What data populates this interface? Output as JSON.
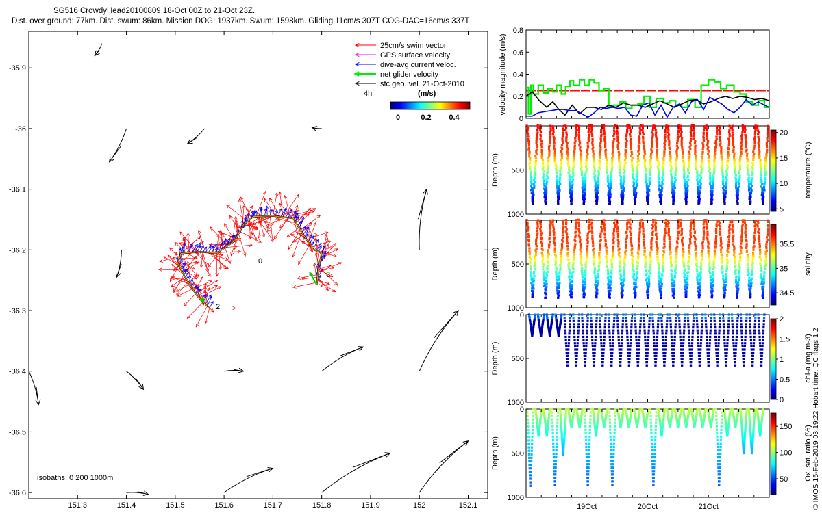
{
  "header": {
    "line1": "SG516 CrowdyHead20100809 18-Oct 00Z to 21-Oct 23Z.",
    "line2": "Dist. over ground: 77km. Dist. swum: 86km. Mission DOG: 1937km. Swum: 1598km. Gliding 11cm/s 307T COG-DAC=16cm/s 337T"
  },
  "side_label": "© IMOS 15-Feb-2019 03:19:22 Hobart time. QC flags 1  2",
  "map": {
    "x_ticks": [
      "151.3",
      "151.4",
      "151.5",
      "151.6",
      "151.7",
      "151.8",
      "151.9",
      "152",
      "152.1"
    ],
    "y_ticks": [
      "-35.9",
      "-36",
      "-36.1",
      "-36.2",
      "-36.3",
      "-36.4",
      "-36.5",
      "-36.6"
    ],
    "xlim": [
      151.2,
      152.14
    ],
    "ylim": [
      -36.61,
      -35.84
    ],
    "legend": [
      {
        "label": "25cm/s swim vector",
        "color": "#ff0000"
      },
      {
        "label": "GPS surface velocity",
        "color": "#ff00ff"
      },
      {
        "label": "dive-avg current veloc.",
        "color": "#0000ff"
      },
      {
        "label": "net glider velocity",
        "color": "#00ee00"
      },
      {
        "label": "sfc geo. vel. 21-Oct-2010",
        "color": "#000000"
      }
    ],
    "colorbar": {
      "title": "(m/s)",
      "ticks": [
        "0",
        "0.2",
        "0.4"
      ],
      "extra_label": "4h"
    },
    "isobaths_text": "isobaths: 0   200  1000m",
    "day_labels": [
      "0",
      "8",
      "2"
    ],
    "track": [
      [
        151.57,
        -36.296
      ],
      [
        151.545,
        -36.276
      ],
      [
        151.52,
        -36.245
      ],
      [
        151.505,
        -36.222
      ],
      [
        151.512,
        -36.206
      ],
      [
        151.545,
        -36.203
      ],
      [
        151.585,
        -36.205
      ],
      [
        151.602,
        -36.196
      ],
      [
        151.622,
        -36.185
      ],
      [
        151.64,
        -36.158
      ],
      [
        151.66,
        -36.145
      ],
      [
        151.7,
        -36.144
      ],
      [
        151.742,
        -36.148
      ],
      [
        151.762,
        -36.175
      ],
      [
        151.782,
        -36.199
      ],
      [
        151.8,
        -36.205
      ],
      [
        151.793,
        -36.232
      ],
      [
        151.79,
        -36.258
      ]
    ],
    "geo_vectors": [
      [
        151.35,
        -35.86,
        -0.015,
        -0.02
      ],
      [
        151.4,
        -36.0,
        -0.035,
        -0.055
      ],
      [
        151.56,
        -36.0,
        -0.035,
        -0.025
      ],
      [
        151.8,
        -36.0,
        -0.02,
        0.002
      ],
      [
        151.39,
        -36.2,
        -0.01,
        -0.045
      ],
      [
        152.0,
        -36.2,
        0.015,
        0.1
      ],
      [
        151.8,
        -36.4,
        0.085,
        0.04
      ],
      [
        152.0,
        -36.4,
        0.08,
        0.1
      ],
      [
        151.4,
        -36.4,
        0.035,
        -0.03
      ],
      [
        151.2,
        -36.4,
        0.02,
        -0.055
      ],
      [
        151.6,
        -36.4,
        0.04,
        0.0
      ],
      [
        151.6,
        -36.6,
        0.1,
        0.04
      ],
      [
        151.8,
        -36.6,
        0.14,
        0.065
      ],
      [
        152.0,
        -36.6,
        0.1,
        0.085
      ],
      [
        151.4,
        -36.6,
        0.045,
        -0.003
      ]
    ]
  },
  "chart_data": [
    {
      "type": "line",
      "ylabel": "velocity magnitude (m/s)",
      "ylim": [
        0,
        0.8
      ],
      "y_ticks": [
        "0",
        "0.2",
        "0.4",
        "0.6",
        "0.8"
      ],
      "x_ticks": [
        "19Oct",
        "20Oct",
        "21Oct"
      ],
      "xlim_days": [
        0,
        4
      ],
      "series": [
        {
          "color": "#ff0000",
          "style": "dashed",
          "x": [
            0,
            4
          ],
          "y": [
            0.25,
            0.25
          ]
        },
        {
          "color": "#00ee00",
          "style": "step",
          "x": [
            0,
            0.04,
            0.08,
            0.12,
            0.2,
            0.28,
            0.36,
            0.44,
            0.5,
            0.58,
            0.65,
            0.72,
            0.78,
            0.88,
            0.96,
            1.04,
            1.12,
            1.2,
            1.28,
            1.36,
            1.44,
            1.54,
            1.64,
            1.74,
            1.84,
            1.94,
            2.04,
            2.14,
            2.26,
            2.36,
            2.46,
            2.56,
            2.66,
            2.78,
            2.88,
            3.0,
            3.1,
            3.2,
            3.3,
            3.42,
            3.52,
            3.62,
            3.72,
            3.82,
            3.92,
            4.0
          ],
          "y": [
            0.28,
            0.04,
            0.3,
            0.22,
            0.3,
            0.23,
            0.27,
            0.24,
            0.3,
            0.22,
            0.29,
            0.34,
            0.3,
            0.35,
            0.3,
            0.35,
            0.32,
            0.25,
            0.27,
            0.11,
            0.12,
            0.15,
            0.09,
            0.12,
            0.13,
            0.2,
            0.1,
            0.18,
            0.14,
            0.16,
            0.12,
            0.1,
            0.17,
            0.1,
            0.3,
            0.35,
            0.33,
            0.27,
            0.3,
            0.24,
            0.22,
            0.15,
            0.12,
            0.16,
            0.1,
            0.12
          ]
        },
        {
          "color": "#000000",
          "style": "solid",
          "x": [
            0,
            0.1,
            0.22,
            0.34,
            0.44,
            0.54,
            0.64,
            0.76,
            0.88,
            1.0,
            1.12,
            1.24,
            1.36,
            1.48,
            1.6,
            1.72,
            1.84,
            1.96,
            2.08,
            2.2,
            2.32,
            2.44,
            2.56,
            2.68,
            2.8,
            2.92,
            3.04,
            3.16,
            3.28,
            3.4,
            3.52,
            3.64,
            3.76,
            3.88,
            4.0
          ],
          "y": [
            0.2,
            0.24,
            0.16,
            0.1,
            0.15,
            0.08,
            0.03,
            0.12,
            0.04,
            0.1,
            0.1,
            0.08,
            0.12,
            0.1,
            0.14,
            0.12,
            0.12,
            0.1,
            0.13,
            0.16,
            0.13,
            0.1,
            0.13,
            0.16,
            0.17,
            0.13,
            0.15,
            0.18,
            0.2,
            0.18,
            0.2,
            0.19,
            0.17,
            0.18,
            0.16
          ]
        },
        {
          "color": "#0000ff",
          "style": "solid",
          "x": [
            0,
            0.1,
            0.2,
            0.3,
            0.42,
            0.52,
            0.62,
            0.72,
            0.82,
            0.92,
            1.02,
            1.12,
            1.22,
            1.32,
            1.42,
            1.52,
            1.62,
            1.72,
            1.82,
            1.92,
            2.02,
            2.12,
            2.22,
            2.32,
            2.42,
            2.52,
            2.62,
            2.72,
            2.82,
            2.92,
            3.02,
            3.12,
            3.22,
            3.32,
            3.42,
            3.52,
            3.62,
            3.72,
            3.82,
            3.92,
            4.0
          ],
          "y": [
            0.02,
            0.02,
            0.05,
            0.06,
            0.07,
            0.08,
            0.08,
            0.07,
            0.07,
            0.04,
            0.01,
            0.05,
            0.1,
            0.09,
            0.1,
            0.09,
            0.1,
            0.03,
            0.02,
            0.12,
            0.14,
            0.03,
            0.12,
            0.01,
            0.1,
            0.13,
            0.05,
            0.15,
            0.17,
            0.08,
            0.19,
            0.16,
            0.13,
            0.08,
            0.05,
            0.1,
            0.17,
            0.12,
            0.15,
            0.12,
            0.1
          ]
        }
      ]
    },
    {
      "type": "scatter",
      "ylabel": "Depth (m)",
      "clabel": "temperature (°C)",
      "ylim": [
        1000,
        0
      ],
      "y_ticks": [
        "500",
        "1000"
      ],
      "x_ticks": [
        "19Oct",
        "20Oct",
        "21Oct"
      ],
      "clim": [
        4.5,
        20.5
      ],
      "c_ticks": [
        "5",
        "10",
        "15",
        "20"
      ],
      "dives": 19,
      "max_depth_m": 880,
      "surface_value": 18.5,
      "bottom_value": 5
    },
    {
      "type": "scatter",
      "ylabel": "Depth (m)",
      "clabel": "salinity",
      "ylim": [
        1000,
        0
      ],
      "y_ticks": [
        "500",
        "1000"
      ],
      "x_ticks": [
        "19Oct",
        "20Oct",
        "21Oct"
      ],
      "clim": [
        34.25,
        35.9
      ],
      "c_ticks": [
        "34.5",
        "35",
        "35.5"
      ],
      "dives": 19,
      "max_depth_m": 880,
      "surface_value": 35.6,
      "bottom_value": 34.4
    },
    {
      "type": "scatter",
      "ylabel": "Depth (m)",
      "clabel": "chl-a (mg m-3)",
      "ylim": [
        1000,
        0
      ],
      "y_ticks": [
        "0",
        "500",
        "1000"
      ],
      "x_ticks": [
        "19Oct",
        "20Oct",
        "21Oct"
      ],
      "clim": [
        0,
        2
      ],
      "c_ticks": [
        "0",
        "0.5",
        "1",
        "1.5",
        "2"
      ],
      "max_depth_m": 580,
      "surface_value": 0.1,
      "bottom_value": 0.05
    },
    {
      "type": "scatter",
      "ylabel": "Depth (m)",
      "clabel": "Ox. sat. ratio (%)",
      "ylim": [
        1000,
        0
      ],
      "y_ticks": [
        "0",
        "500",
        "1000"
      ],
      "x_ticks": [
        "19Oct",
        "20Oct",
        "21Oct"
      ],
      "clim": [
        20,
        175
      ],
      "c_ticks": [
        "50",
        "100",
        "150"
      ],
      "max_depth_m": 870,
      "surface_value": 95,
      "bottom_value": 55
    }
  ]
}
